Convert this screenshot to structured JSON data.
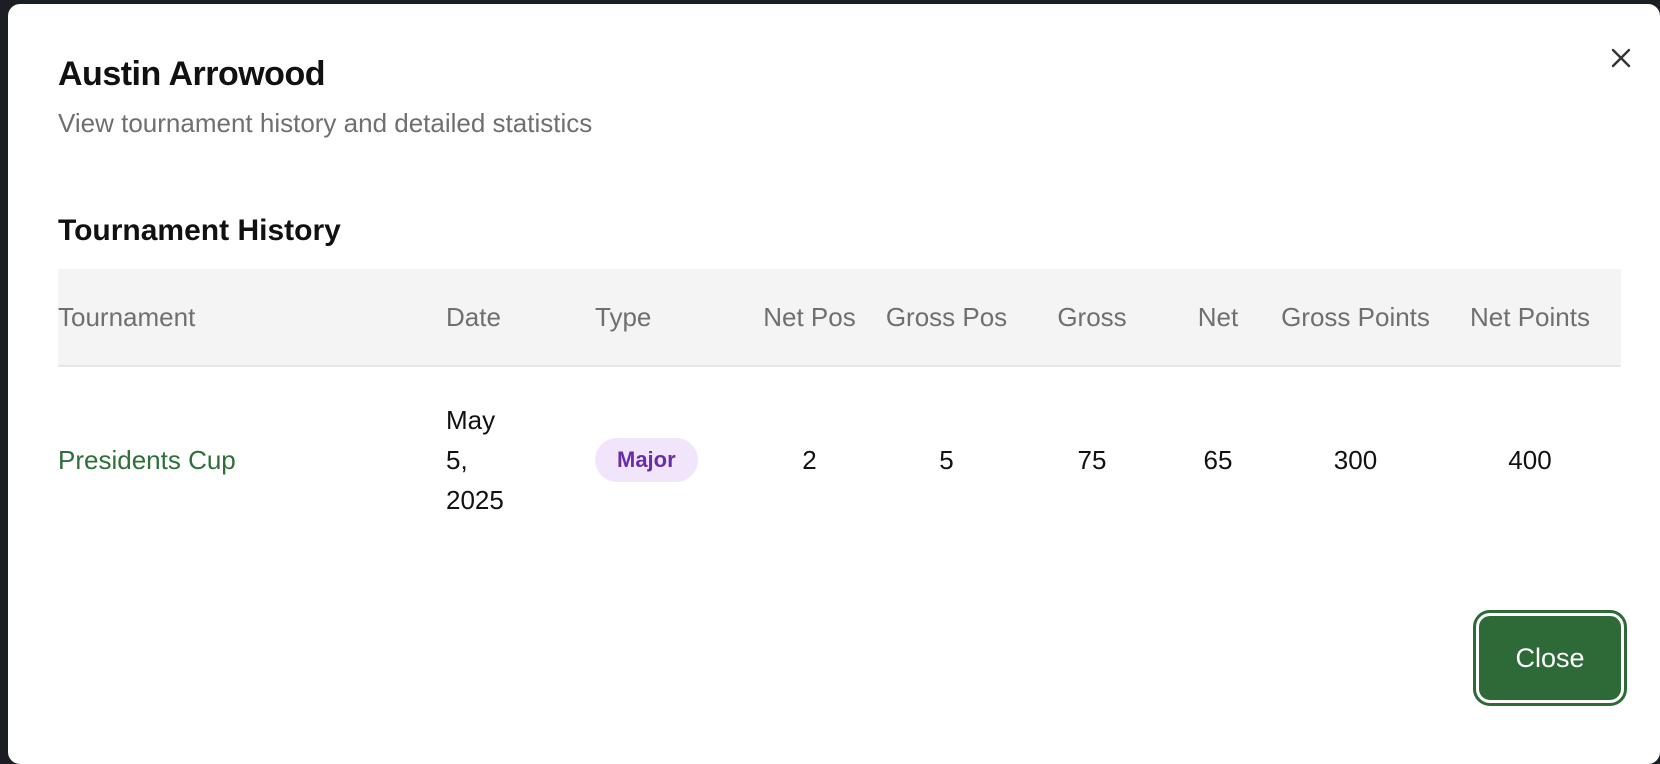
{
  "dialog": {
    "title": "Austin Arrowood",
    "subtitle": "View tournament history and detailed statistics",
    "close_icon": "close-icon",
    "close_button_label": "Close"
  },
  "history": {
    "section_title": "Tournament History",
    "headers": {
      "tournament": "Tournament",
      "date": "Date",
      "type": "Type",
      "net_pos": "Net Pos",
      "gross_pos": "Gross Pos",
      "gross": "Gross",
      "net": "Net",
      "gross_points": "Gross Points",
      "net_points": "Net Points"
    },
    "rows": [
      {
        "tournament": "Presidents Cup",
        "date": "May 5, 2025",
        "type": "Major",
        "net_pos": "2",
        "gross_pos": "5",
        "gross": "75",
        "net": "65",
        "gross_points": "300",
        "net_points": "400"
      }
    ]
  },
  "colors": {
    "accent_green": "#2d6a37",
    "link_green": "#2e6f3a",
    "badge_bg": "#f0e5fb",
    "badge_text": "#6b2ea6"
  }
}
